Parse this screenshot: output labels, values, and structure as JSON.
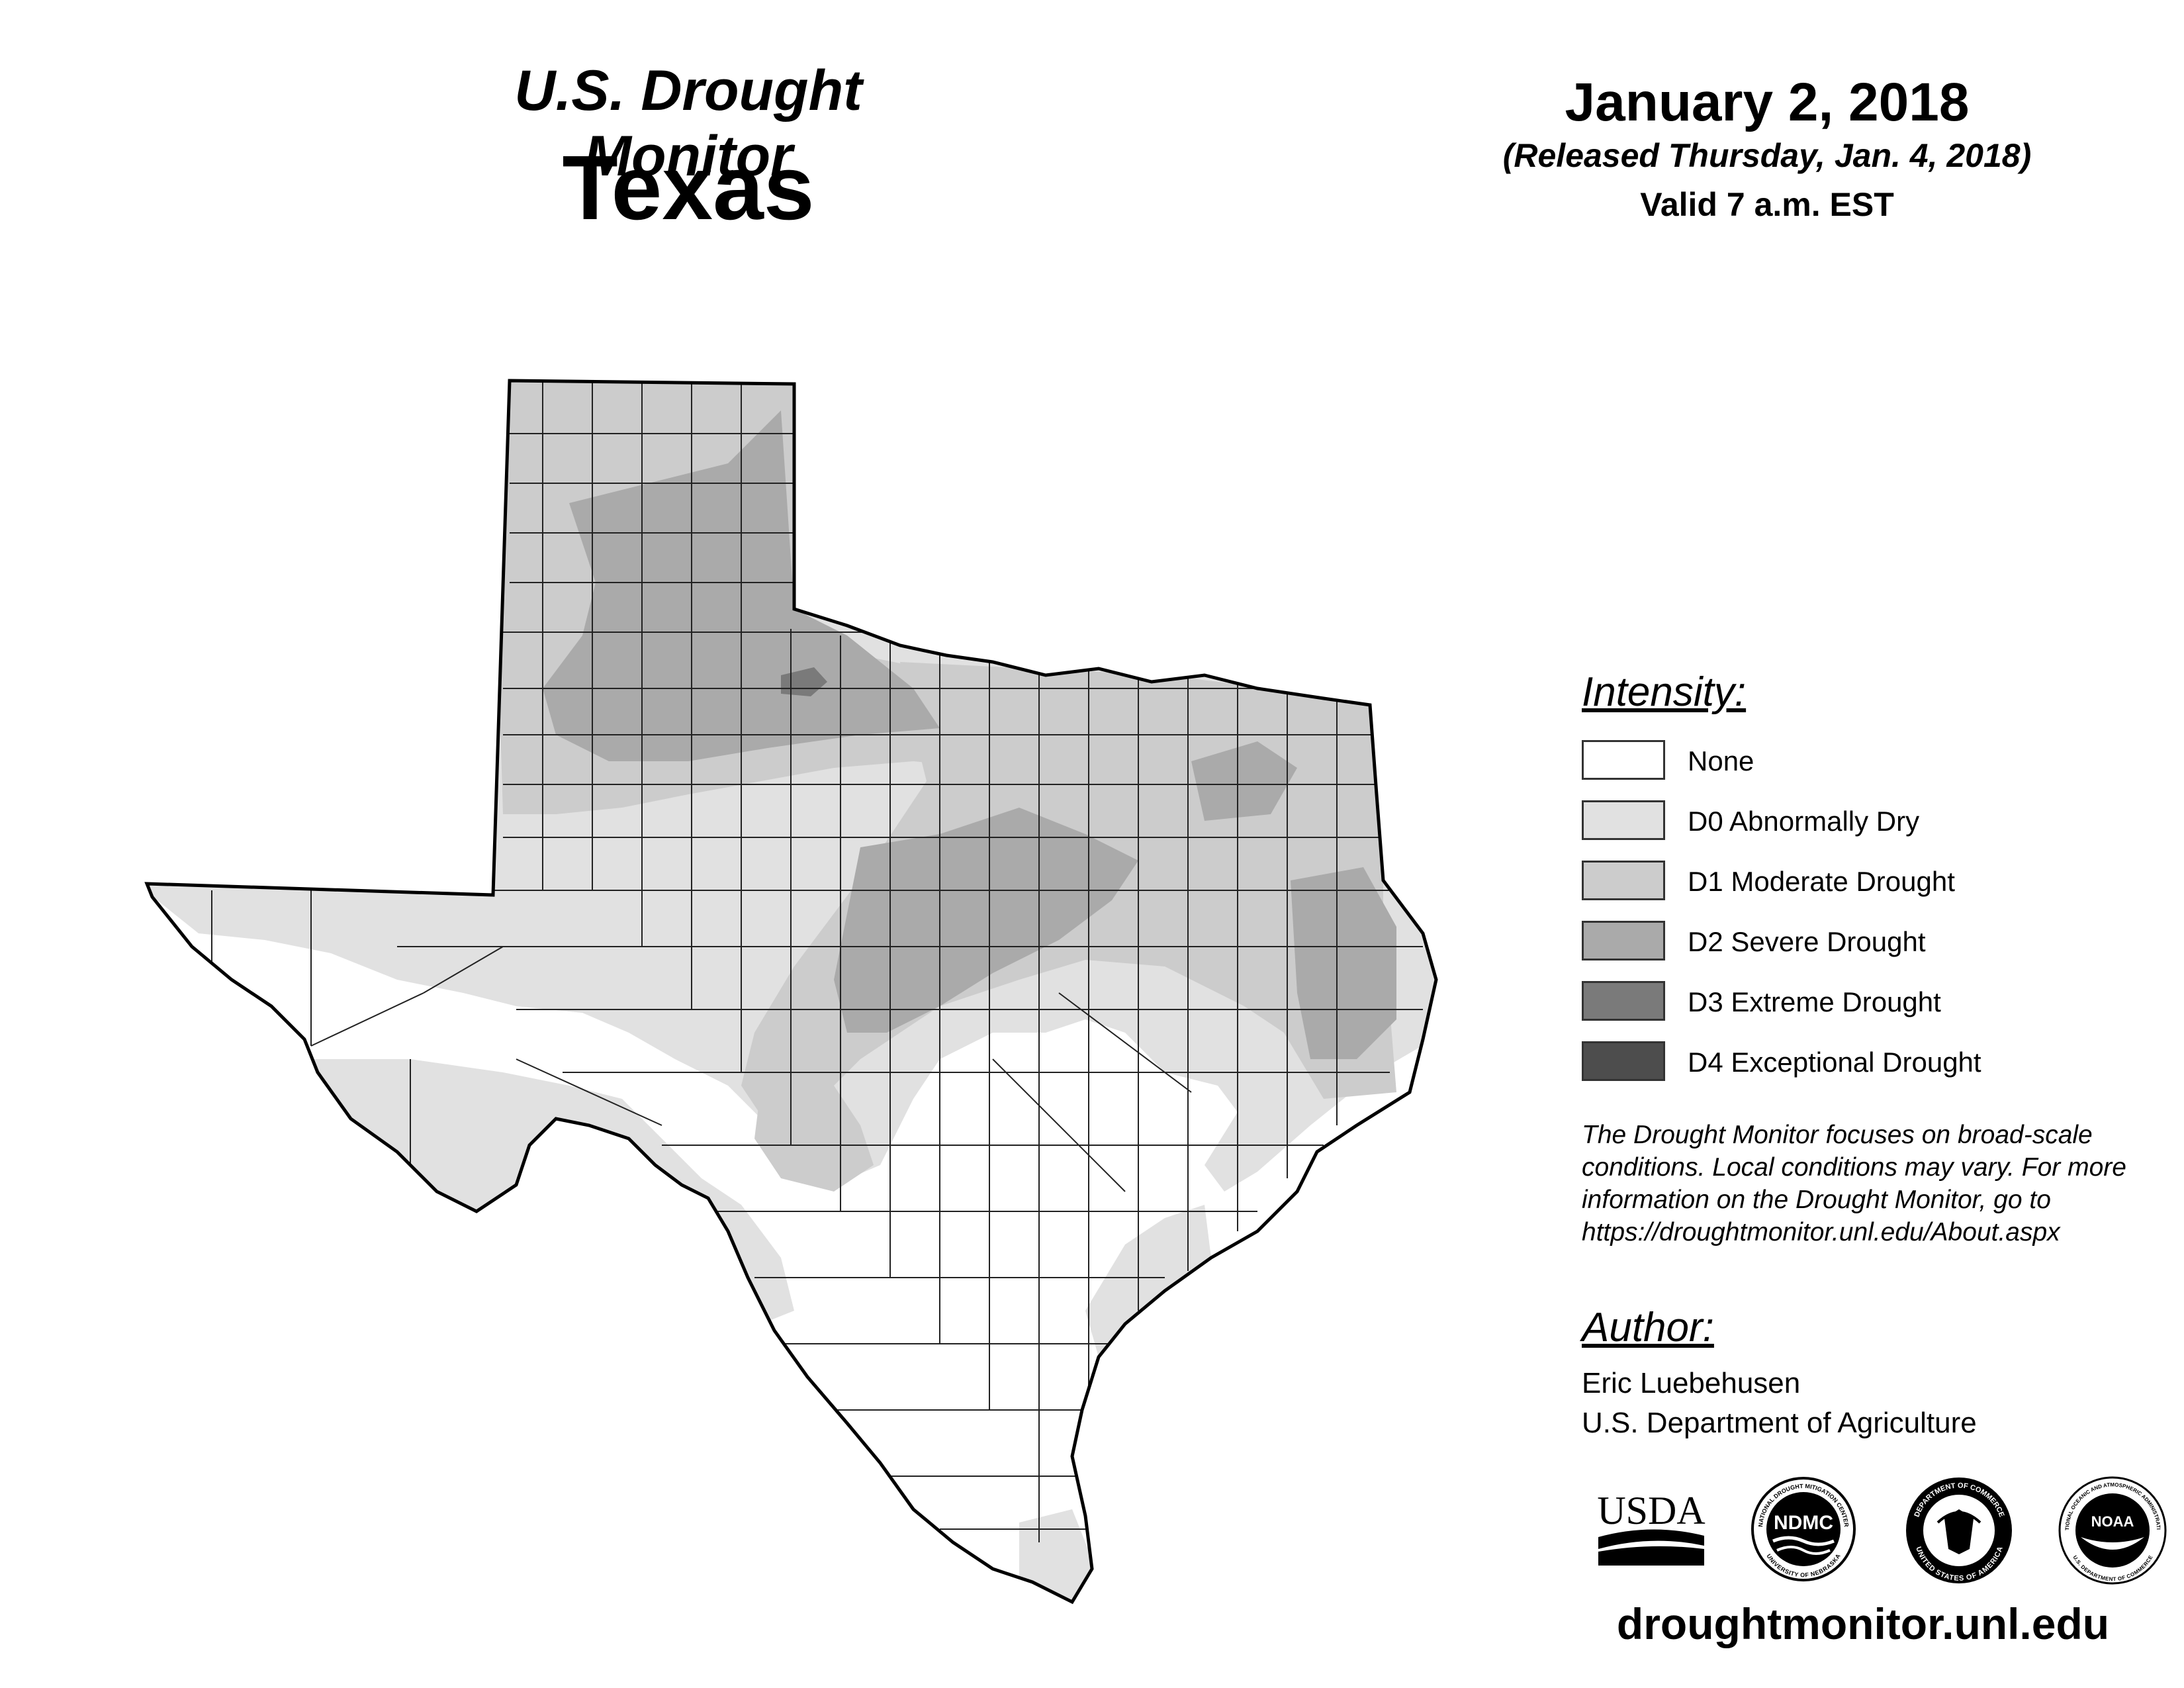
{
  "header": {
    "title": "U.S. Drought Monitor",
    "state": "Texas",
    "date": "January 2, 2018",
    "released": "(Released Thursday, Jan. 4, 2018)",
    "valid": "Valid 7 a.m. EST"
  },
  "legend": {
    "title": "Intensity:",
    "items": [
      {
        "label": "None",
        "color": "#ffffff"
      },
      {
        "label": "D0 Abnormally Dry",
        "color": "#e1e1e1"
      },
      {
        "label": "D1 Moderate Drought",
        "color": "#cccccc"
      },
      {
        "label": "D2 Severe Drought",
        "color": "#aaaaaa"
      },
      {
        "label": "D3 Extreme Drought",
        "color": "#7a7a7a"
      },
      {
        "label": "D4 Exceptional Drought",
        "color": "#4d4d4d"
      }
    ]
  },
  "note": {
    "line1": "The Drought Monitor focuses on broad-scale",
    "line2": "conditions. Local conditions may vary. For more",
    "line3": "information on the Drought Monitor, go to",
    "line4": "https://droughtmonitor.unl.edu/About.aspx"
  },
  "author": {
    "title": "Author:",
    "name": "Eric Luebehusen",
    "org": "U.S. Department of Agriculture"
  },
  "logos": {
    "usda": "USDA",
    "ndmc": "NDMC",
    "ndmc_ring_top": "NATIONAL DROUGHT MITIGATION CENTER",
    "ndmc_ring_bottom": "UNIVERSITY OF NEBRASKA",
    "commerce_ring_top": "DEPARTMENT OF COMMERCE",
    "commerce_ring_bottom": "UNITED STATES OF AMERICA",
    "noaa": "NOAA",
    "noaa_ring_top": "NATIONAL OCEANIC AND ATMOSPHERIC ADMINISTRATION",
    "noaa_ring_bottom": "U.S. DEPARTMENT OF COMMERCE"
  },
  "footer": {
    "url": "droughtmonitor.unl.edu"
  }
}
